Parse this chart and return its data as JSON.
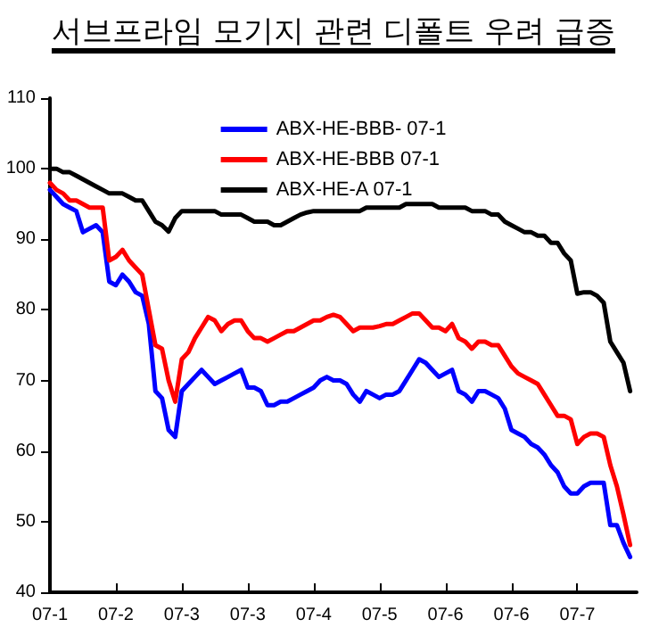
{
  "chart_data": {
    "type": "line",
    "title": "서브프라임 모기지 관련 디폴트 우려 급증",
    "categories": [
      "07-1",
      null,
      null,
      null,
      null,
      null,
      null,
      null,
      null,
      null,
      "07-2",
      null,
      null,
      null,
      null,
      null,
      null,
      null,
      null,
      null,
      "07-3",
      null,
      null,
      null,
      null,
      null,
      null,
      null,
      null,
      null,
      "07-3",
      null,
      null,
      null,
      null,
      null,
      null,
      null,
      null,
      null,
      "07-4",
      null,
      null,
      null,
      null,
      null,
      null,
      null,
      null,
      null,
      "07-5",
      null,
      null,
      null,
      null,
      null,
      null,
      null,
      null,
      null,
      "07-6",
      null,
      null,
      null,
      null,
      null,
      null,
      null,
      null,
      null,
      "07-6",
      null,
      null,
      null,
      null,
      null,
      null,
      null,
      null,
      null,
      "07-7",
      null,
      null,
      null,
      null,
      null,
      null,
      null,
      null,
      null
    ],
    "ylim": [
      40,
      110
    ],
    "yticks": [
      40,
      50,
      60,
      70,
      80,
      90,
      100,
      110
    ],
    "grid": false,
    "legend": "top",
    "marker": "none",
    "line_style": "solid",
    "series": [
      {
        "name": "ABX-HE-BBB- 07-1",
        "color": "#0000ff",
        "values": [
          97,
          96,
          95,
          94.5,
          94,
          91,
          91.5,
          92,
          91,
          84,
          83.5,
          85,
          84,
          82.5,
          82,
          78,
          68.5,
          67.5,
          63,
          62,
          68.5,
          69.5,
          70.5,
          71.5,
          70.5,
          69.5,
          70,
          70.5,
          71,
          71.5,
          69,
          69,
          68.5,
          66.5,
          66.5,
          67,
          67,
          67.5,
          68,
          68.5,
          69,
          70,
          70.5,
          70,
          70,
          69.5,
          68,
          67,
          68.5,
          68,
          67.5,
          68,
          68,
          68.5,
          70,
          71.5,
          73,
          72.5,
          71.5,
          70.5,
          71,
          71.5,
          68.5,
          68,
          67,
          68.5,
          68.5,
          68,
          67.5,
          66,
          63,
          62.5,
          62,
          61,
          60.5,
          59.5,
          58,
          57,
          55,
          54,
          54,
          55,
          55.5,
          55.5,
          55.5,
          49.5,
          49.5,
          47,
          45,
          null
        ]
      },
      {
        "name": "ABX-HE-BBB 07-1",
        "color": "#ff0000",
        "values": [
          98,
          97,
          96.5,
          95.5,
          95.5,
          95,
          94.5,
          94.5,
          94.5,
          87,
          87.5,
          88.5,
          87,
          86,
          85,
          80,
          75,
          74.5,
          70,
          67,
          73,
          74,
          76,
          77.5,
          79,
          78.5,
          77,
          78,
          78.5,
          78.5,
          77,
          76,
          76,
          75.5,
          76,
          76.5,
          77,
          77,
          77.5,
          78,
          78.5,
          78.5,
          79,
          79.3,
          79,
          78,
          77,
          77.5,
          77.5,
          77.5,
          77.7,
          78,
          78,
          78.5,
          79,
          79.5,
          79.5,
          78.5,
          77.5,
          77.5,
          77,
          78,
          76,
          75.5,
          74.5,
          75.5,
          75.5,
          75,
          75,
          73.5,
          72,
          71,
          70.5,
          70,
          69.5,
          68,
          66.5,
          65,
          65,
          64.5,
          61,
          62,
          62.5,
          62.5,
          62,
          58,
          55,
          51,
          46.7,
          null
        ]
      },
      {
        "name": "ABX-HE-A 07-1",
        "color": "#000000",
        "values": [
          100,
          100,
          99.5,
          99.5,
          99,
          98.5,
          98,
          97.5,
          97,
          96.5,
          96.5,
          96.5,
          96,
          95.5,
          95.5,
          94,
          92.5,
          92,
          91.1,
          93,
          94,
          94,
          94,
          94,
          94,
          94,
          93.5,
          93.5,
          93.5,
          93.5,
          93,
          92.5,
          92.5,
          92.5,
          92,
          92,
          92.5,
          93,
          93.5,
          93.8,
          94,
          94,
          94,
          94,
          94,
          94,
          94,
          94,
          94.5,
          94.5,
          94.5,
          94.5,
          94.5,
          94.5,
          95,
          95,
          95,
          95,
          95,
          94.5,
          94.5,
          94.5,
          94.5,
          94.5,
          94,
          94,
          94,
          93.5,
          93.5,
          92.5,
          92,
          91.5,
          91,
          91,
          90.5,
          90.5,
          89.5,
          89.5,
          88,
          87,
          82.3,
          82.5,
          82.5,
          82,
          81,
          75.5,
          74,
          72.5,
          68.5,
          null
        ]
      }
    ]
  }
}
